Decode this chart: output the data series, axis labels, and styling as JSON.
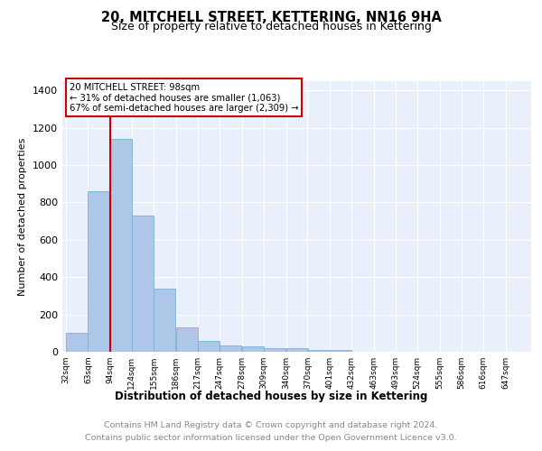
{
  "title": "20, MITCHELL STREET, KETTERING, NN16 9HA",
  "subtitle": "Size of property relative to detached houses in Kettering",
  "xlabel": "Distribution of detached houses by size in Kettering",
  "ylabel": "Number of detached properties",
  "bar_color": "#aec6e8",
  "bar_edge_color": "#7aafd4",
  "background_color": "#eaf0fb",
  "grid_color": "#ffffff",
  "bins": [
    32,
    63,
    94,
    124,
    155,
    186,
    217,
    247,
    278,
    309,
    340,
    370,
    401,
    432,
    463,
    493,
    524,
    555,
    586,
    616,
    647
  ],
  "counts": [
    100,
    860,
    1140,
    730,
    340,
    130,
    60,
    35,
    30,
    20,
    20,
    10,
    10,
    0,
    0,
    0,
    0,
    0,
    0,
    0
  ],
  "property_line_x": 94,
  "annotation_line1": "20 MITCHELL STREET: 98sqm",
  "annotation_line2": "← 31% of detached houses are smaller (1,063)",
  "annotation_line3": "67% of semi-detached houses are larger (2,309) →",
  "annotation_box_color": "#ffffff",
  "annotation_box_edge_color": "#cc0000",
  "red_line_color": "#cc0000",
  "ylim": [
    0,
    1450
  ],
  "yticks": [
    0,
    200,
    400,
    600,
    800,
    1000,
    1200,
    1400
  ],
  "footer_line1": "Contains HM Land Registry data © Crown copyright and database right 2024.",
  "footer_line2": "Contains public sector information licensed under the Open Government Licence v3.0."
}
